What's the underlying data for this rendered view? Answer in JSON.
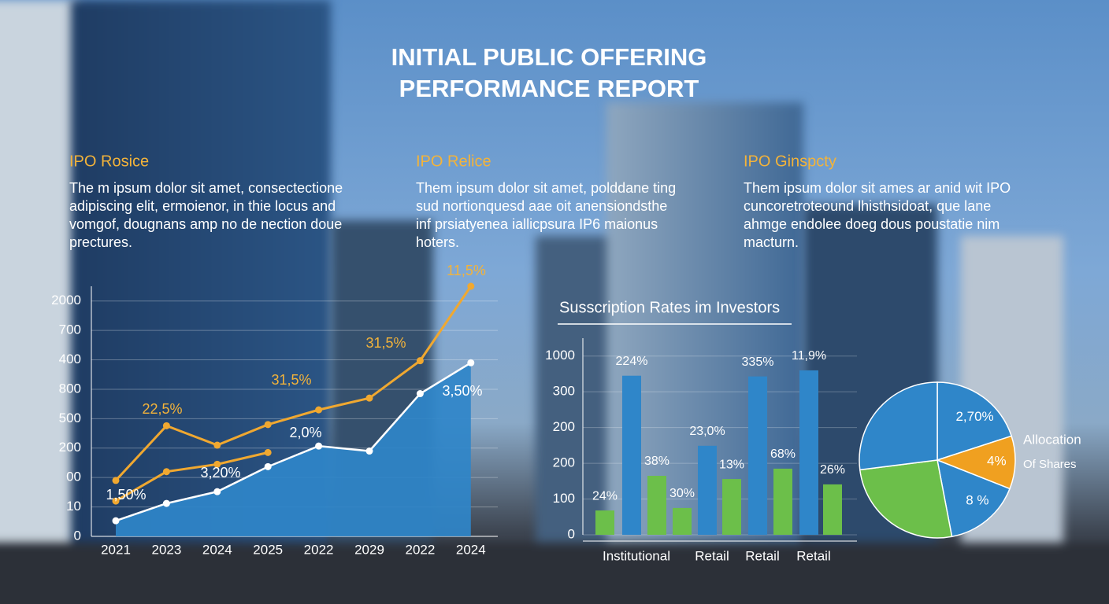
{
  "header": {
    "title_lines": [
      "INITIAL PUBLIC OFFERING",
      "PERFORMANCE REPORT"
    ]
  },
  "columns": [
    {
      "heading": "IPO Rosice",
      "lines": [
        "The  m ipsum dolor sit amet, consectectione",
        "adipiscing elit, ermoienor, in thie locus and",
        "vomgof, dougnans amp no de nection doue",
        "prectures."
      ]
    },
    {
      "heading": "IPO Relice",
      "lines": [
        "Them ipsum dolor sit amet, polddane ting",
        "sud nortionquesd aae oit anensiondsthe",
        "inf prsiatyenea iallicpsura IP6 maionus",
        "hoters."
      ]
    },
    {
      "heading": "IPO Ginspcty",
      "lines": [
        "Them ipsum dolor sit ames ar anid wit IPO",
        "cuncoretroteound lhisthsidoat, que lane",
        "ahmge endolee doeg dous poustatie nim",
        "macturn."
      ]
    }
  ],
  "chart_data": [
    {
      "type": "line",
      "categories": [
        "2021",
        "2023",
        "2024",
        "2025",
        "2022",
        "2029",
        "2022",
        "2024"
      ],
      "ylim": [
        0,
        8.5
      ],
      "yticks": [
        0,
        {
          "value": 1,
          "label": "10"
        },
        {
          "value": 2,
          "label": "00"
        },
        {
          "value": 3,
          "label": "200"
        },
        {
          "value": 4,
          "label": "500"
        },
        {
          "value": 5,
          "label": "800"
        },
        {
          "value": 6,
          "label": "400"
        },
        {
          "value": 7,
          "label": "700"
        },
        {
          "value": 8,
          "label": "2000"
        }
      ],
      "grid": true,
      "series": [
        {
          "color": "#2f86c9",
          "fill": true,
          "values": [
            0.53,
            1.12,
            1.52,
            2.37,
            3.07,
            2.9,
            4.85,
            5.9
          ]
        },
        {
          "color": "#f0a830",
          "values": [
            1.9,
            3.76,
            3.1,
            3.8,
            4.3,
            4.7,
            5.97,
            8.5
          ]
        },
        {
          "color": "#f0a830",
          "values": [
            1.2,
            2.2,
            2.45,
            2.85,
            null,
            null,
            null,
            null
          ]
        }
      ],
      "annotations": [
        "1,50%",
        "22,5%",
        "3,20%",
        "31,5%",
        "2,0%",
        "31,5%",
        "3,50%",
        "11,5%"
      ]
    },
    {
      "type": "bar",
      "title": "Susscription Rates im Investors",
      "categories": [
        null,
        "Institutional",
        null,
        null,
        "Retail",
        null,
        "Retail",
        null,
        "Retail",
        null
      ],
      "values": [
        0.68,
        4.45,
        1.65,
        0.75,
        2.49,
        1.56,
        4.43,
        1.85,
        4.6,
        1.41
      ],
      "colors": [
        "#6cbf4a",
        "#2f86c9",
        "#6cbf4a",
        "#6cbf4a",
        "#2f86c9",
        "#6cbf4a",
        "#2f86c9",
        "#6cbf4a",
        "#2f86c9",
        "#6cbf4a"
      ],
      "bar_labels": [
        "24%",
        "224%",
        "38%",
        "30%",
        "23,0%",
        "13%",
        "335%",
        "68%",
        "11,9%",
        "26%"
      ],
      "ylim": [
        0,
        5.5
      ],
      "yticks": [
        0,
        {
          "value": 1,
          "label": "100"
        },
        {
          "value": 2,
          "label": "200"
        },
        {
          "value": 3,
          "label": "200"
        },
        {
          "value": 4,
          "label": "300"
        },
        {
          "value": 5,
          "label": "1000"
        }
      ],
      "grid": true
    },
    {
      "type": "pie",
      "values": [
        20,
        11,
        16,
        26,
        27
      ],
      "colors": [
        "#2f86c9",
        "#f0a020",
        "#2f86c9",
        "#6cbf4a",
        "#2f86c9"
      ],
      "slice_labels": [
        "2,70%",
        "4%",
        "8 %",
        null,
        null
      ],
      "legend_lines": [
        "Allocation",
        "Of Shares"
      ]
    }
  ]
}
